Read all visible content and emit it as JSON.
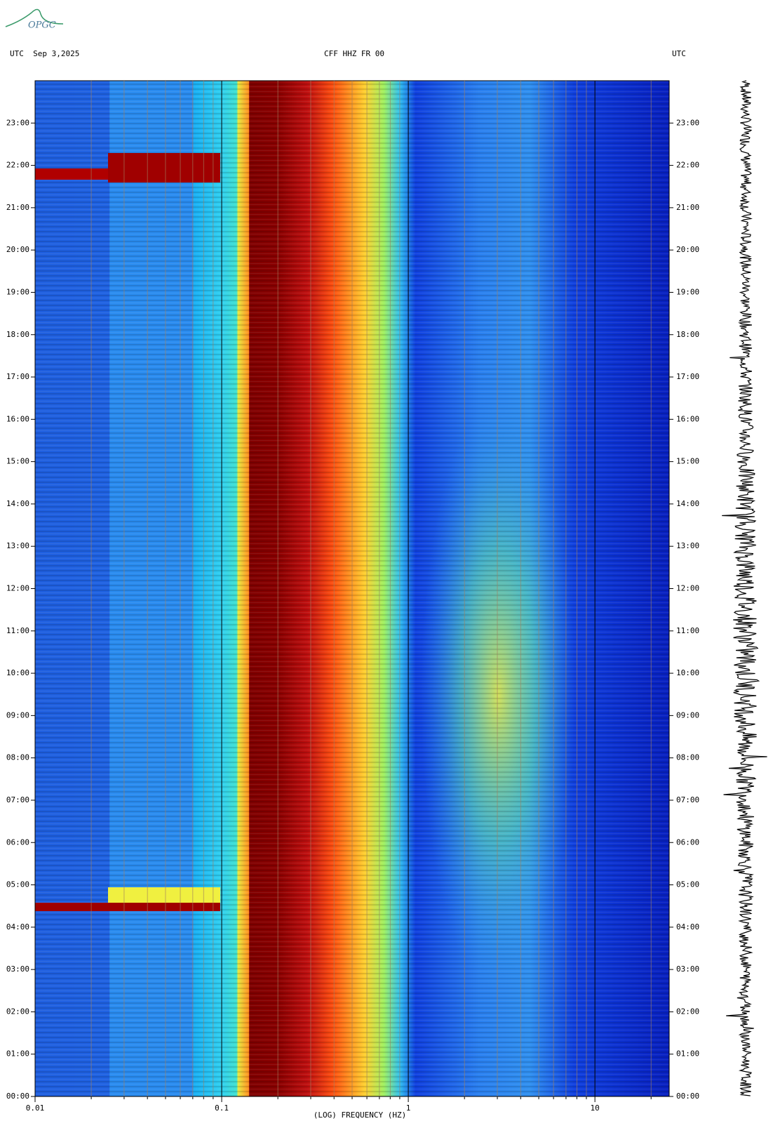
{
  "logo": "OPGC",
  "chart_data": {
    "type": "spectrogram",
    "title": "CFF HHZ FR 00",
    "left_header": "UTC  Sep 3,2025",
    "right_header": "UTC",
    "xlabel": "(LOG) FREQUENCY (HZ)",
    "xscale": "log",
    "xlim": [
      0.01,
      25
    ],
    "xticks": [
      0.01,
      0.1,
      1,
      10
    ],
    "xminor": [
      0.02,
      0.03,
      0.04,
      0.05,
      0.06,
      0.07,
      0.08,
      0.09,
      0.2,
      0.3,
      0.4,
      0.5,
      0.6,
      0.7,
      0.8,
      0.9,
      2,
      3,
      4,
      5,
      6,
      7,
      8,
      9,
      20
    ],
    "ylim": [
      0,
      24
    ],
    "yticks": [
      {
        "value": 0,
        "label": "00:00"
      },
      {
        "value": 1,
        "label": "01:00"
      },
      {
        "value": 2,
        "label": "02:00"
      },
      {
        "value": 3,
        "label": "03:00"
      },
      {
        "value": 4,
        "label": "04:00"
      },
      {
        "value": 5,
        "label": "05:00"
      },
      {
        "value": 6,
        "label": "06:00"
      },
      {
        "value": 7,
        "label": "07:00"
      },
      {
        "value": 8,
        "label": "08:00"
      },
      {
        "value": 9,
        "label": "09:00"
      },
      {
        "value": 10,
        "label": "10:00"
      },
      {
        "value": 11,
        "label": "11:00"
      },
      {
        "value": 12,
        "label": "12:00"
      },
      {
        "value": 13,
        "label": "13:00"
      },
      {
        "value": 14,
        "label": "14:00"
      },
      {
        "value": 15,
        "label": "15:00"
      },
      {
        "value": 16,
        "label": "16:00"
      },
      {
        "value": 17,
        "label": "17:00"
      },
      {
        "value": 18,
        "label": "18:00"
      },
      {
        "value": 19,
        "label": "19:00"
      },
      {
        "value": 20,
        "label": "20:00"
      },
      {
        "value": 21,
        "label": "21:00"
      },
      {
        "value": 22,
        "label": "22:00"
      },
      {
        "value": 23,
        "label": "23:00"
      }
    ]
  }
}
